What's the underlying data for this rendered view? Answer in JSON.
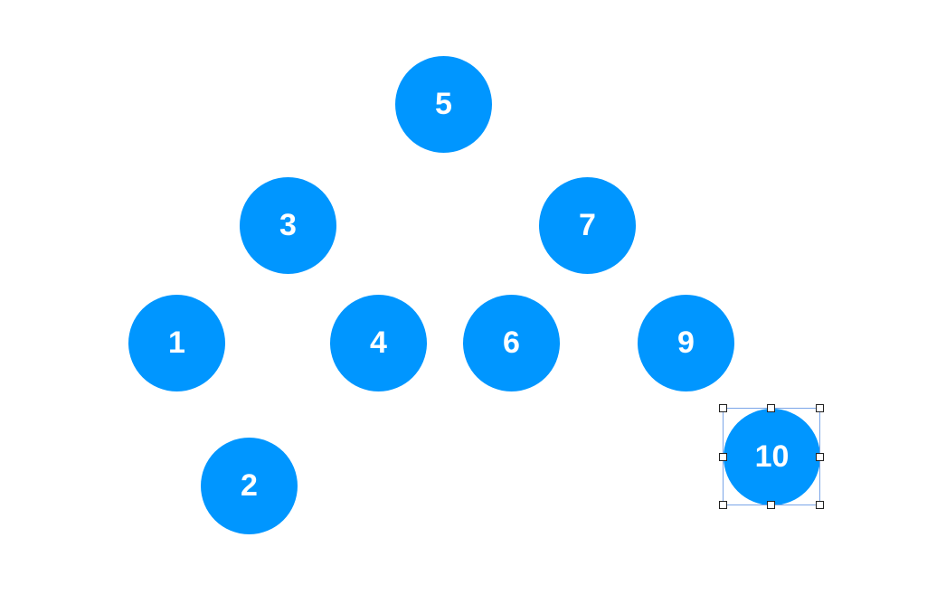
{
  "diagram": {
    "node_color": "#0096ff",
    "label_color": "#ffffff",
    "selection_color": "#7aa5e8",
    "nodes": [
      {
        "label": "5"
      },
      {
        "label": "3"
      },
      {
        "label": "7"
      },
      {
        "label": "1"
      },
      {
        "label": "4"
      },
      {
        "label": "6"
      },
      {
        "label": "9"
      },
      {
        "label": "2"
      },
      {
        "label": "10"
      }
    ],
    "selected_label": "10"
  }
}
